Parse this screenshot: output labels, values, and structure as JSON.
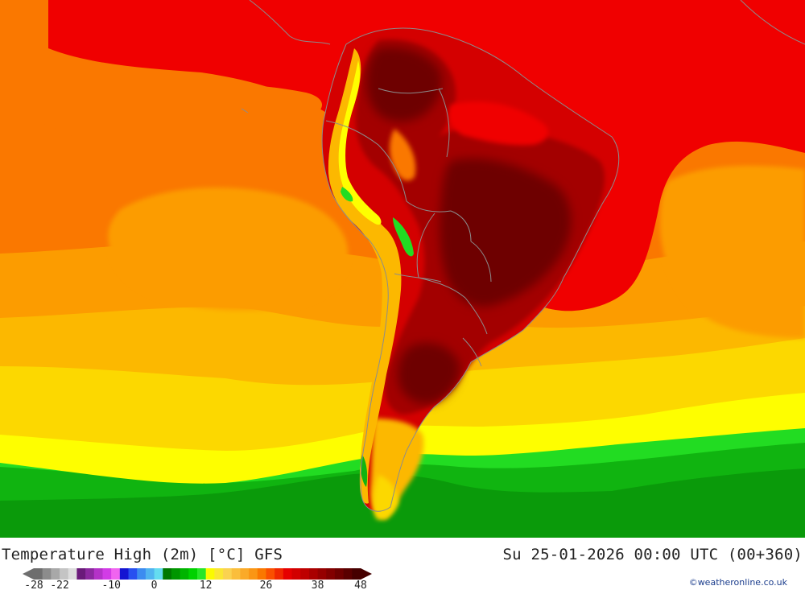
{
  "map": {
    "title": "Temperature High (2m) [°C] GFS",
    "valid_time": "Su 25-01-2026 00:00 UTC (00+360)",
    "credit": "©weatheronline.co.uk",
    "colors": {
      "extreme": "#6e0000",
      "very_hot": "#a30000",
      "hot": "#d40000",
      "hot_red": "#f00000",
      "warm": "#fa7800",
      "mild": "#fc9c00",
      "temperate": "#fcb800",
      "cool_yellow": "#fcd800",
      "yellow": "#fefe00",
      "green_light": "#22dc22",
      "green": "#10b410",
      "green_dark": "#0a9a0a",
      "border": "#8c8c8c"
    }
  },
  "legend": {
    "tick_labels": [
      "-28",
      "-22",
      "-10",
      "0",
      "12",
      "26",
      "38",
      "48"
    ],
    "tick_values": [
      -28,
      -22,
      -10,
      0,
      12,
      26,
      38,
      48
    ],
    "range": [
      -28,
      48
    ],
    "colors": [
      "#6e6e6e",
      "#8c8c8c",
      "#a8a8a8",
      "#c4c4c4",
      "#dcdcdc",
      "#6a1a7a",
      "#8c28a0",
      "#b432c8",
      "#d23ce6",
      "#f064f0",
      "#1414d2",
      "#2850f0",
      "#3c8cf0",
      "#50b4f0",
      "#64dcf0",
      "#007800",
      "#009600",
      "#00b400",
      "#00d200",
      "#28e628",
      "#fafa00",
      "#fae632",
      "#fad250",
      "#fabe3c",
      "#faaa28",
      "#fa9614",
      "#fa7800",
      "#fa5000",
      "#f02800",
      "#e60000",
      "#d20000",
      "#be0000",
      "#aa0000",
      "#960000",
      "#820000",
      "#6e0000",
      "#5a0000",
      "#460000"
    ]
  }
}
